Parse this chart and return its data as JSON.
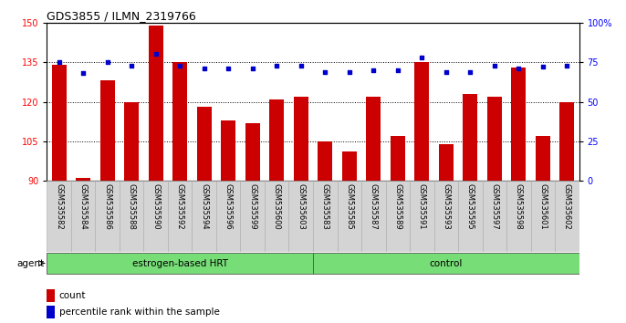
{
  "title": "GDS3855 / ILMN_2319766",
  "categories": [
    "GSM535582",
    "GSM535584",
    "GSM535586",
    "GSM535588",
    "GSM535590",
    "GSM535592",
    "GSM535594",
    "GSM535596",
    "GSM535599",
    "GSM535600",
    "GSM535603",
    "GSM535583",
    "GSM535585",
    "GSM535587",
    "GSM535589",
    "GSM535591",
    "GSM535593",
    "GSM535595",
    "GSM535597",
    "GSM535598",
    "GSM535601",
    "GSM535602"
  ],
  "bar_values": [
    134,
    91,
    128,
    120,
    149,
    135,
    118,
    113,
    112,
    121,
    122,
    105,
    101,
    122,
    107,
    135,
    104,
    123,
    122,
    133,
    107,
    120
  ],
  "percentile_values": [
    75,
    68,
    75,
    73,
    80,
    73,
    71,
    71,
    71,
    73,
    73,
    69,
    69,
    70,
    70,
    78,
    69,
    69,
    73,
    71,
    72,
    73
  ],
  "bar_color": "#cc0000",
  "dot_color": "#0000cc",
  "ylim_left": [
    90,
    150
  ],
  "ylim_right": [
    0,
    100
  ],
  "yticks_left": [
    90,
    105,
    120,
    135,
    150
  ],
  "yticks_right": [
    0,
    25,
    50,
    75,
    100
  ],
  "group1_label": "estrogen-based HRT",
  "group2_label": "control",
  "group1_count": 11,
  "group2_count": 11,
  "agent_label": "agent",
  "legend_bar_label": "count",
  "legend_dot_label": "percentile rank within the sample",
  "background_plot": "#ffffff",
  "background_xtick": "#d4d4d4",
  "group_color": "#77dd77",
  "title_fontsize": 9,
  "tick_fontsize": 7,
  "bar_width": 0.6
}
